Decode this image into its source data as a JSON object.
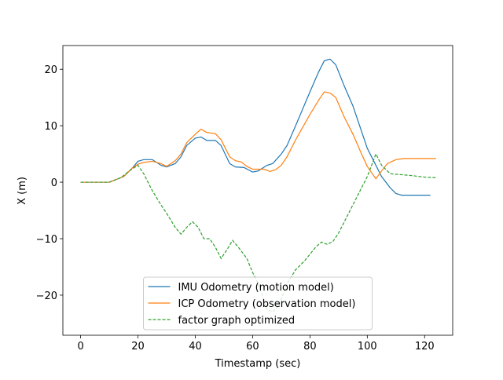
{
  "chart_data": {
    "type": "line",
    "xlabel": "Timestamp (sec)",
    "ylabel": "X (m)",
    "xlim": [
      -6.2,
      129.8
    ],
    "ylim": [
      -27.1,
      24.2
    ],
    "xticks": [
      0,
      20,
      40,
      60,
      80,
      100,
      120
    ],
    "yticks": [
      {
        "value": -20,
        "label": "−20"
      },
      {
        "value": -10,
        "label": "−10"
      },
      0,
      10,
      20
    ],
    "legend": "lower center",
    "series": [
      {
        "name": "IMU Odometry (motion model)",
        "color": "#1f77b4",
        "linestyle": "solid",
        "x": [
          0,
          10,
          15,
          18,
          20,
          22,
          25,
          28,
          30,
          33,
          35,
          37,
          40,
          42,
          44,
          47,
          49,
          52,
          54,
          57,
          60,
          62,
          65,
          67,
          70,
          72,
          75,
          80,
          83,
          85,
          87,
          89,
          92,
          95,
          98,
          100,
          102,
          105,
          108,
          110,
          112,
          122
        ],
        "values": [
          0,
          0,
          1,
          2.5,
          3.7,
          4,
          4,
          3,
          2.7,
          3.3,
          4.5,
          6.5,
          7.8,
          8,
          7.4,
          7.4,
          6.5,
          3.3,
          2.7,
          2.6,
          1.8,
          2.0,
          3,
          3.3,
          5,
          6.5,
          10,
          16,
          19.5,
          21.5,
          21.8,
          20.8,
          17,
          13.5,
          9,
          6,
          4,
          1,
          -1,
          -2,
          -2.3,
          -2.3
        ]
      },
      {
        "name": "ICP Odometry (observation model)",
        "color": "#ff7f0e",
        "linestyle": "solid",
        "x": [
          0,
          10,
          15,
          18,
          20,
          22,
          25,
          28,
          30,
          33,
          35,
          37,
          40,
          42,
          44,
          47,
          49,
          52,
          54,
          56,
          58,
          60,
          64,
          66,
          68,
          70,
          72,
          75,
          80,
          83,
          85,
          87,
          89,
          92,
          95,
          98,
          100,
          103,
          105,
          107,
          110,
          113,
          124
        ],
        "values": [
          0,
          0,
          1,
          2.5,
          3.2,
          3.5,
          3.7,
          3.3,
          2.8,
          3.8,
          5,
          7,
          8.5,
          9.4,
          8.8,
          8.6,
          7.5,
          4.5,
          3.8,
          3.6,
          2.8,
          2.3,
          2.3,
          1.9,
          2.2,
          3,
          4.5,
          7.5,
          12,
          14.5,
          16,
          15.8,
          15,
          11.5,
          8.5,
          5,
          2.8,
          0.6,
          2,
          3.3,
          4,
          4.2,
          4.2
        ]
      },
      {
        "name": "factor graph optimized",
        "color": "#2ca02c",
        "linestyle": "dashed",
        "x": [
          0,
          10,
          14,
          17,
          20,
          22,
          25,
          28,
          30,
          33,
          35,
          37,
          39,
          41,
          43,
          45,
          47,
          49,
          51,
          53,
          55,
          58,
          60,
          62,
          64,
          65,
          67,
          69,
          72,
          75,
          78,
          82,
          84,
          86,
          88,
          90,
          95,
          100,
          103,
          105,
          108,
          115,
          120,
          124
        ],
        "values": [
          0,
          0,
          0.8,
          2,
          3,
          1.5,
          -1.5,
          -4,
          -5.5,
          -8,
          -9.2,
          -8,
          -7,
          -8,
          -10,
          -10,
          -11.5,
          -13.5,
          -12,
          -10.3,
          -11.5,
          -13.5,
          -16,
          -18,
          -21,
          -22.5,
          -23,
          -22,
          -18,
          -15.5,
          -14,
          -11.5,
          -10.6,
          -11,
          -10.5,
          -9,
          -4,
          1,
          5,
          3,
          1.5,
          1.2,
          0.9,
          0.8
        ]
      }
    ]
  }
}
